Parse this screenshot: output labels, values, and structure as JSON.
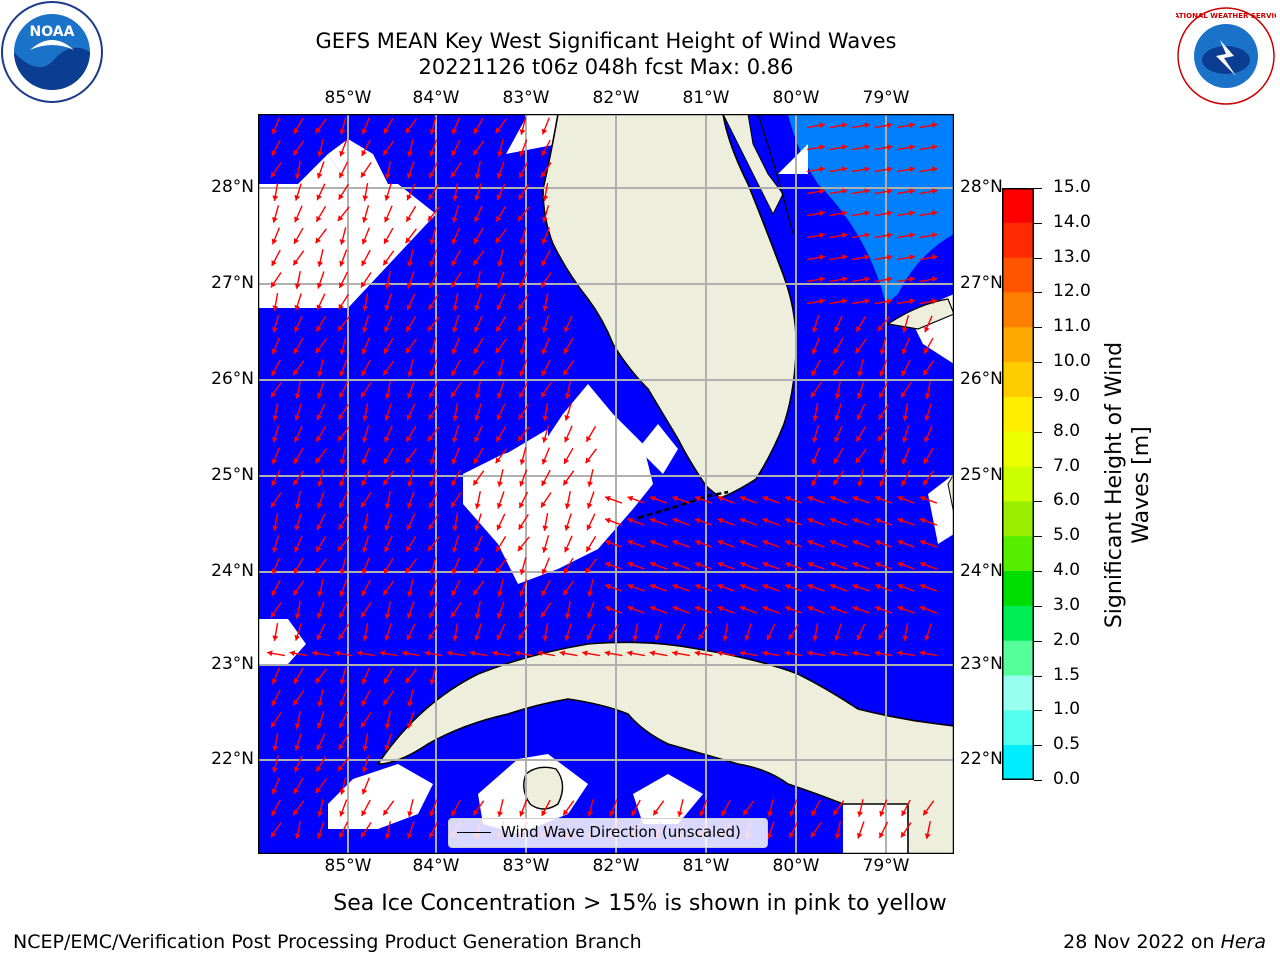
{
  "title_line1": "GEFS MEAN Key West Significant Height of Wind Waves",
  "title_line2": "20221126 t06z 048h fcst   Max: 0.86",
  "lon_ticks": [
    "85°W",
    "84°W",
    "83°W",
    "82°W",
    "81°W",
    "80°W",
    "79°W"
  ],
  "lat_ticks": [
    "28°N",
    "27°N",
    "26°N",
    "25°N",
    "24°N",
    "23°N",
    "22°N"
  ],
  "legend_label": "Wind Wave Direction (unscaled)",
  "colorbar": {
    "title_line1": "Significant Height of Wind",
    "title_line2": "Waves [m]",
    "tick_labels": [
      "15.0",
      "14.0",
      "13.0",
      "12.0",
      "11.0",
      "10.0",
      "9.0",
      "8.0",
      "7.0",
      "6.0",
      "5.0",
      "4.0",
      "3.0",
      "2.0",
      "1.5",
      "1.0",
      "0.5",
      "0.0"
    ],
    "colors": [
      "#ff0000",
      "#ff2a00",
      "#ff5500",
      "#ff8000",
      "#ffaa00",
      "#ffcc00",
      "#ffee00",
      "#eeff00",
      "#ccff00",
      "#99ee00",
      "#55ee00",
      "#00dd00",
      "#00ee55",
      "#55ff99",
      "#99ffee",
      "#55ffee",
      "#00eeff",
      "#0088ff",
      "#0000ff"
    ]
  },
  "note": "Sea Ice Concentration > 15% is shown in pink to yellow",
  "footer_left": "NCEP/EMC/Verification Post Processing Product Generation Branch",
  "footer_right_date": "28 Nov 2022 on ",
  "footer_right_host": "Hera",
  "logos": {
    "left": "NOAA",
    "right": "NATIONAL WEATHER SERVICE"
  },
  "map_colors": {
    "ocean": "#0000ff",
    "land": "#eeeedc",
    "grid": "#b0b0b0",
    "arrow": "#ff0000",
    "high_wave": "#0080ff"
  }
}
